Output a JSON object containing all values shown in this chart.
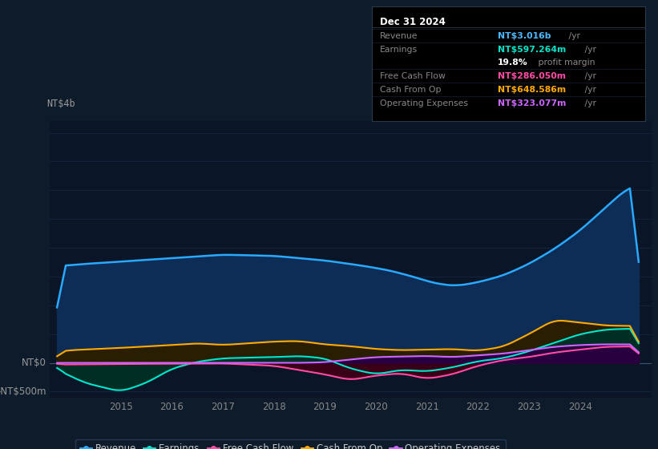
{
  "bg_color": "#0d1b2a",
  "plot_bg_color": "#0a1628",
  "grid_color": "#1a3050",
  "ylabel_top": "NT$4b",
  "ylabel_zero": "NT$0",
  "ylabel_neg": "-NT$500m",
  "x_ticks": [
    2015,
    2016,
    2017,
    2018,
    2019,
    2020,
    2021,
    2022,
    2023,
    2024
  ],
  "ylim": [
    -600,
    4200
  ],
  "xlim": [
    2013.6,
    2025.4
  ],
  "revenue_color": "#29aaff",
  "revenue_fill": "#1a3d6e",
  "earnings_color": "#00e5cc",
  "earnings_fill": "#004a3a",
  "fcf_color": "#ff4da6",
  "fcf_fill": "#5a0020",
  "cfop_color": "#ffaa00",
  "cfop_fill": "#3a2800",
  "opex_color": "#cc66ff",
  "opex_fill": "#3a0066",
  "series_labels": [
    "Revenue",
    "Earnings",
    "Free Cash Flow",
    "Cash From Op",
    "Operating Expenses"
  ]
}
